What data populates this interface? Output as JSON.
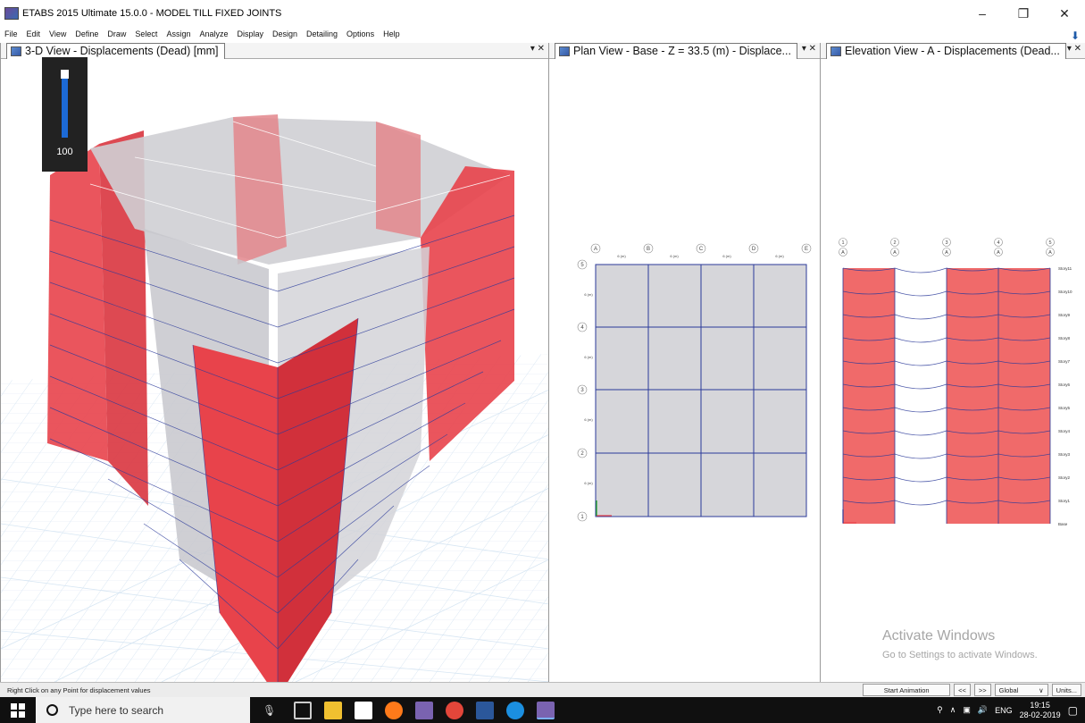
{
  "window": {
    "title": "ETABS 2015 Ultimate 15.0.0 - MODEL TILL FIXED JOINTS",
    "minimize": "–",
    "maximize": "❐",
    "close": "✕"
  },
  "menu": [
    "File",
    "Edit",
    "View",
    "Define",
    "Draw",
    "Select",
    "Assign",
    "Analyze",
    "Display",
    "Design",
    "Detailing",
    "Options",
    "Help"
  ],
  "panels": {
    "view3d": {
      "title": "3-D View   - Displacements (Dead)  [mm]",
      "close": "▾ ✕"
    },
    "plan": {
      "title": "Plan View - Base - Z = 33.5 (m)  - Displace...",
      "close": "▾ ✕"
    },
    "elevation": {
      "title": "Elevation View - A  - Displacements (Dead...",
      "close": "▾ ✕"
    }
  },
  "animation_scale": "100",
  "plan_view": {
    "column_bubbles": [
      "A",
      "B",
      "C",
      "D",
      "E"
    ],
    "row_bubbles": [
      "5",
      "4",
      "3",
      "2",
      "1"
    ],
    "dims_x": [
      "6 (m)",
      "6 (m)",
      "6 (m)",
      "6 (m)"
    ],
    "dims_y": [
      "6 (m)",
      "6 (m)",
      "6 (m)",
      "6 (m)"
    ]
  },
  "elevation_view": {
    "column_bubbles_top": [
      "1",
      "2",
      "3",
      "4",
      "5"
    ],
    "column_bubbles_bottom": [
      "A",
      "A",
      "A",
      "A",
      "A"
    ],
    "stories": [
      "Story11",
      "Story10",
      "Story9",
      "Story8",
      "Story7",
      "Story6",
      "Story5",
      "Story4",
      "Story3",
      "Story2",
      "Story1",
      "Base"
    ]
  },
  "status": {
    "message": "Right Click on any Point for displacement values",
    "start_animation": "Start Animation",
    "prev": "<<",
    "next": ">>",
    "coord_system": "Global",
    "units": "Units..."
  },
  "watermark": {
    "line1": "Activate Windows",
    "line2": "Go to Settings to activate Windows."
  },
  "taskbar": {
    "search_placeholder": "Type here to search",
    "language": "ENG",
    "time": "19:15",
    "date": "28-02-2019"
  },
  "colors": {
    "shell_red": "#e8434b",
    "shell_gray": "#cfcfd4",
    "grid_blue": "#2b3a9a"
  }
}
